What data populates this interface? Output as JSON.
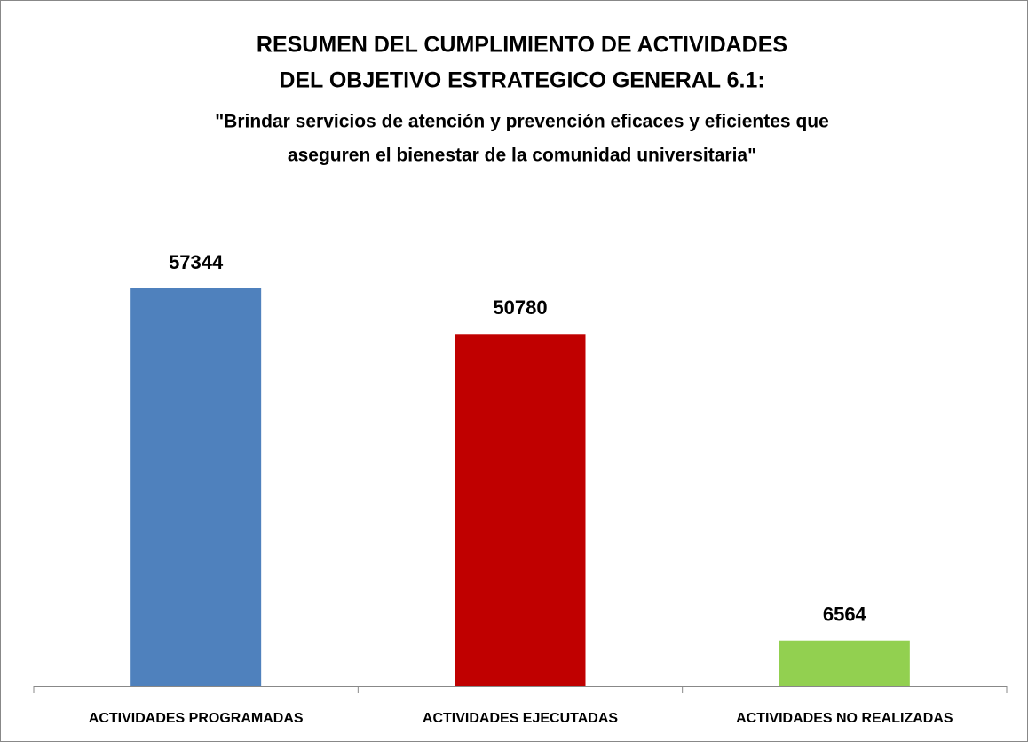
{
  "chart_data": {
    "type": "bar",
    "title": [
      "RESUMEN DEL CUMPLIMIENTO DE ACTIVIDADES",
      "DEL OBJETIVO ESTRATEGICO GENERAL 6.1:"
    ],
    "subtitle": [
      "\"Brindar servicios de atención y prevención eficaces y eficientes que",
      "aseguren el bienestar de la comunidad universitaria\""
    ],
    "categories": [
      "ACTIVIDADES PROGRAMADAS",
      "ACTIVIDADES EJECUTADAS",
      "ACTIVIDADES NO REALIZADAS"
    ],
    "values": [
      57344,
      50780,
      6564
    ],
    "colors": [
      "#4f81bd",
      "#c00000",
      "#92d050"
    ]
  }
}
